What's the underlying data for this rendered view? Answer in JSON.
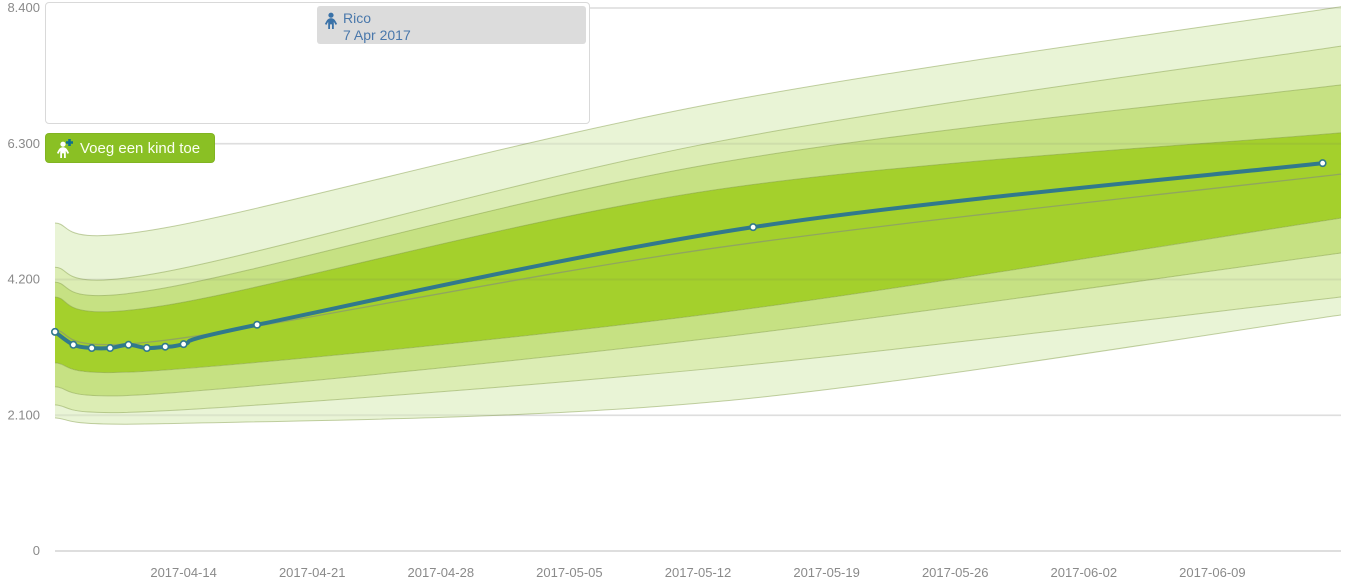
{
  "legend_panel": {
    "child_name": "Rico",
    "child_birthdate": "7 Apr 2017"
  },
  "add_child_button": {
    "label": "Voeg een kind toe"
  },
  "colors": {
    "series": "#31798c",
    "marker_fill": "#ffffff",
    "median_line": "#90a65f",
    "boundary_stroke": "rgba(125,150,62,0.45)",
    "grid": "#e6e6e6",
    "grid_overlay": "rgba(100,100,100,0.10)",
    "axis_line": "#d8d8d8",
    "tick_text": "#8a8a8a",
    "button_bg": "#8ac024",
    "chip_bg": "#dcdcdc",
    "chip_text": "#4a78ab",
    "chip_icon": "#3a72a8",
    "btn_icon_person": "#ffffff",
    "btn_icon_plus": "#0e6f8c"
  },
  "chart_data": {
    "type": "line",
    "title": "",
    "xlabel": "",
    "ylabel": "",
    "x_axis": {
      "start_date": "2017-04-07",
      "range_days": [
        0,
        70
      ],
      "ticks": [
        {
          "day": 7,
          "label": "2017-04-14"
        },
        {
          "day": 14,
          "label": "2017-04-21"
        },
        {
          "day": 21,
          "label": "2017-04-28"
        },
        {
          "day": 28,
          "label": "2017-05-05"
        },
        {
          "day": 35,
          "label": "2017-05-12"
        },
        {
          "day": 42,
          "label": "2017-05-19"
        },
        {
          "day": 49,
          "label": "2017-05-26"
        },
        {
          "day": 56,
          "label": "2017-06-02"
        },
        {
          "day": 63,
          "label": "2017-06-09"
        }
      ]
    },
    "y_axis": {
      "unit": "grams",
      "range": [
        0,
        8525
      ],
      "ticks": [
        {
          "value": 0,
          "label": "0"
        },
        {
          "value": 2100,
          "label": "2.100"
        },
        {
          "value": 4200,
          "label": "4.200"
        },
        {
          "value": 6300,
          "label": "6.300"
        },
        {
          "value": 8400,
          "label": "8.400"
        }
      ]
    },
    "series": [
      {
        "name": "Rico",
        "birth_date": "7 Apr 2017",
        "points": [
          {
            "day": 0,
            "date": "2017-04-07",
            "weight_g": 3390
          },
          {
            "day": 1,
            "date": "2017-04-08",
            "weight_g": 3190
          },
          {
            "day": 2,
            "date": "2017-04-09",
            "weight_g": 3140
          },
          {
            "day": 3,
            "date": "2017-04-10",
            "weight_g": 3140
          },
          {
            "day": 4,
            "date": "2017-04-11",
            "weight_g": 3190
          },
          {
            "day": 5,
            "date": "2017-04-12",
            "weight_g": 3140
          },
          {
            "day": 6,
            "date": "2017-04-13",
            "weight_g": 3160
          },
          {
            "day": 7,
            "date": "2017-04-14",
            "weight_g": 3200
          },
          {
            "day": 11,
            "date": "2017-04-18",
            "weight_g": 3500
          },
          {
            "day": 38,
            "date": "2017-05-15",
            "weight_g": 5010
          },
          {
            "day": 69,
            "date": "2017-06-15",
            "weight_g": 6000
          }
        ]
      }
    ],
    "percentile_curves": {
      "anchor_days": [
        0,
        6,
        36,
        70
      ],
      "boundaries": [
        {
          "name": "upper-outer",
          "values_g": [
            5074,
            5000,
            6930,
            8420
          ]
        },
        {
          "name": "upper-high",
          "values_g": [
            4390,
            4320,
            6330,
            7810
          ]
        },
        {
          "name": "upper-mid",
          "values_g": [
            4160,
            4070,
            6000,
            7210
          ]
        },
        {
          "name": "upper-center",
          "values_g": [
            3930,
            3800,
            5590,
            6470
          ]
        },
        {
          "name": "lower-center",
          "values_g": [
            2910,
            2800,
            3680,
            5150
          ]
        },
        {
          "name": "lower-mid",
          "values_g": [
            2540,
            2440,
            3300,
            4610
          ]
        },
        {
          "name": "lower-high",
          "values_g": [
            2260,
            2170,
            2830,
            3930
          ]
        },
        {
          "name": "lower-outer",
          "values_g": [
            2060,
            1970,
            2310,
            3650
          ]
        }
      ],
      "median": {
        "name": "median",
        "values_g": [
          3420,
          3260,
          4690,
          5830
        ]
      }
    },
    "band_fills_outer_to_center": [
      "#e9f4d6",
      "#dcedb4",
      "#c6e183",
      "#a4d02c"
    ],
    "legend_position": "top-left",
    "grid": true
  }
}
